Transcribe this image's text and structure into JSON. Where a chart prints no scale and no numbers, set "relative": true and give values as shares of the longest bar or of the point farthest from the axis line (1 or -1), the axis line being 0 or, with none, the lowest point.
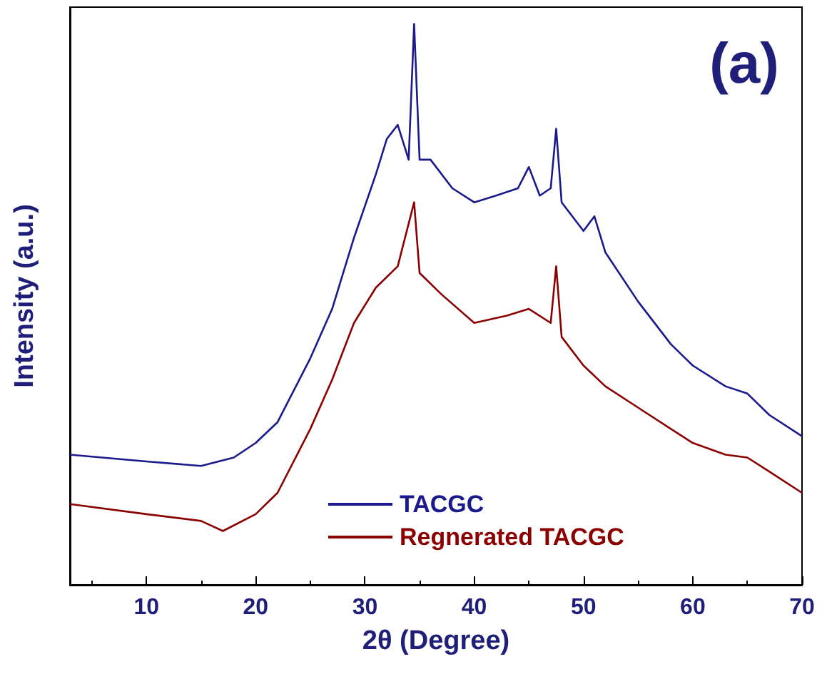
{
  "chart_data": {
    "type": "line",
    "xlabel": "2θ (Degree)",
    "ylabel": "Intensity (a.u.)",
    "annotations": [
      "(a)"
    ],
    "relative": true,
    "xlim": [
      3,
      70
    ],
    "xticks": [
      10,
      20,
      30,
      40,
      50,
      60,
      70
    ],
    "grid": false,
    "legend": "bottom",
    "marker": "none",
    "line_style": "solid",
    "series": [
      {
        "name": "TACGC",
        "color": "#1a1a8c",
        "x": [
          3,
          10,
          15,
          18,
          20,
          22,
          25,
          27,
          29,
          31,
          32,
          33,
          34,
          34.5,
          35,
          36,
          38,
          40,
          42,
          44,
          45,
          46,
          47,
          47.5,
          48,
          50,
          51,
          52,
          55,
          58,
          60,
          63,
          65,
          67,
          70
        ],
        "values": [
          0.232,
          0.22,
          0.212,
          0.227,
          0.253,
          0.29,
          0.404,
          0.492,
          0.619,
          0.732,
          0.795,
          0.82,
          0.758,
          1.0,
          0.758,
          0.758,
          0.707,
          0.682,
          0.694,
          0.707,
          0.745,
          0.694,
          0.707,
          0.813,
          0.682,
          0.631,
          0.657,
          0.593,
          0.505,
          0.429,
          0.391,
          0.354,
          0.341,
          0.303,
          0.265
        ]
      },
      {
        "name": "Regnerated TACGC",
        "color": "#8b0000",
        "x": [
          3,
          10,
          15,
          17,
          20,
          22,
          25,
          27,
          29,
          31,
          33,
          34.5,
          35,
          37,
          40,
          43,
          45,
          47,
          47.5,
          48,
          50,
          52,
          55,
          58,
          60,
          63,
          65,
          67,
          70
        ],
        "values": [
          0.144,
          0.126,
          0.114,
          0.096,
          0.126,
          0.164,
          0.278,
          0.366,
          0.467,
          0.53,
          0.568,
          0.682,
          0.556,
          0.518,
          0.467,
          0.48,
          0.492,
          0.467,
          0.568,
          0.442,
          0.391,
          0.354,
          0.316,
          0.278,
          0.253,
          0.232,
          0.227,
          0.202,
          0.164
        ]
      }
    ]
  }
}
